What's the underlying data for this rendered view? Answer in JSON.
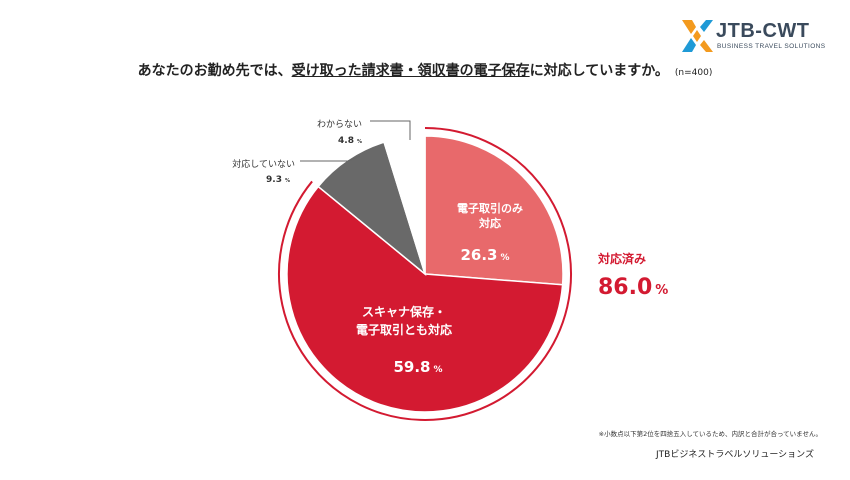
{
  "title": {
    "prefix": "あなたのお勤め先では、",
    "underlined": "受け取った請求書・領収書の電子保存",
    "suffix": "に対応していますか。",
    "note": "(n=400)"
  },
  "logo": {
    "name": "JTB-CWT",
    "tagline": "BUSINESS TRAVEL SOLUTIONS"
  },
  "chart_data": {
    "type": "pie",
    "slices": [
      {
        "label_lines": [
          "電子取引のみ",
          "対応"
        ],
        "value": 26.3,
        "unit": "%",
        "color": "#e8696b"
      },
      {
        "label_lines": [
          "スキャナ保存・",
          "電子取引とも対応"
        ],
        "value": 59.8,
        "unit": "%",
        "color": "#d31a31"
      },
      {
        "label_lines": [
          "対応していない"
        ],
        "value": 9.3,
        "unit": "%",
        "color": "#696969"
      },
      {
        "label_lines": [
          "わからない"
        ],
        "value": 4.8,
        "unit": "%",
        "color": "#ffffff"
      }
    ],
    "summary": {
      "label": "対応済み",
      "value": "86.0",
      "unit": "%",
      "color": "#d31a31"
    }
  },
  "footnote": "※小数点以下第2位を四捨五入しているため、内訳と合計が合っていません。",
  "source": "JTBビジネストラベルソリューションズ"
}
